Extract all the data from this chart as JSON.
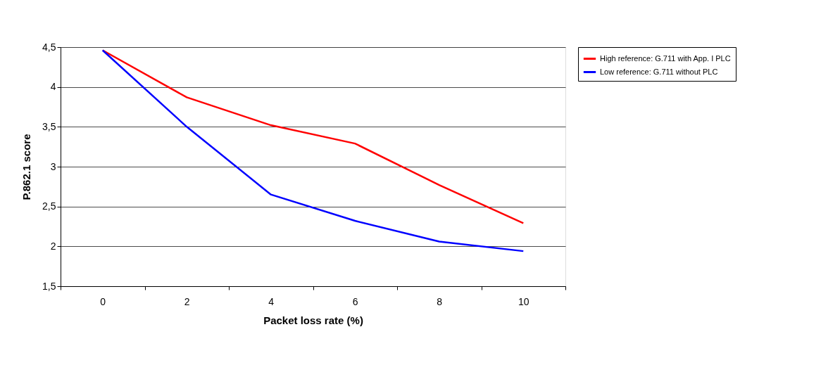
{
  "chart_data": {
    "type": "line",
    "xlabel": "Packet loss rate (%)",
    "ylabel": "P.862.1 score",
    "categories": [
      "0",
      "2",
      "4",
      "6",
      "8",
      "10"
    ],
    "series": [
      {
        "name": "High reference: G.711 with App. I PLC",
        "color": "#ff0000",
        "values": [
          4.46,
          3.87,
          3.52,
          3.29,
          2.77,
          2.29
        ]
      },
      {
        "name": "Low reference: G.711 without PLC",
        "color": "#0000ff",
        "values": [
          4.46,
          3.5,
          2.65,
          2.32,
          2.06,
          1.94
        ]
      }
    ],
    "ylim": [
      1.5,
      4.5
    ],
    "yticks": [
      {
        "value": 1.5,
        "label": "1,5"
      },
      2,
      {
        "value": 2.5,
        "label": "2,5"
      },
      3,
      {
        "value": 3.5,
        "label": "3,5"
      },
      4,
      {
        "value": 4.5,
        "label": "4,5"
      }
    ],
    "grid": "y",
    "legend": "right",
    "marker": "none",
    "line_style": "solid"
  }
}
